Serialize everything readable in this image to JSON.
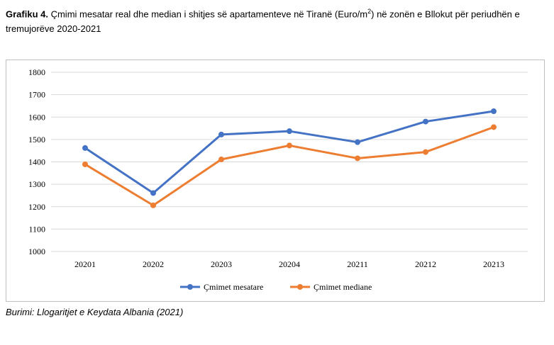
{
  "caption": {
    "label": "Grafiku 4.",
    "text_before_sup": "Çmimi mesatar real dhe median i shitjes së apartamenteve në Tiranë (Euro/m",
    "sup": "2",
    "text_after_sup": ") në zonën e Bllokut për periudhën e tremujorëve 2020-2021"
  },
  "source": "Burimi: Llogaritjet e Keydata Albania (2021)",
  "chart_data": {
    "type": "line",
    "categories": [
      "20201",
      "20202",
      "20203",
      "20204",
      "20211",
      "20212",
      "20213"
    ],
    "series": [
      {
        "name": "Çmimet mesatare",
        "color": "#4472c4",
        "values": [
          1462,
          1261,
          1522,
          1537,
          1488,
          1580,
          1626
        ]
      },
      {
        "name": "Çmimet mediane",
        "color": "#ed7d31",
        "values": [
          1389,
          1206,
          1411,
          1473,
          1416,
          1444,
          1555
        ]
      }
    ],
    "ylim": [
      1000,
      1800
    ],
    "yticks": [
      "1000",
      "1100",
      "1200",
      "1300",
      "1400",
      "1500",
      "1600",
      "1700",
      "1800"
    ],
    "grid": true,
    "legend": "bottom",
    "title": "",
    "xlabel": "",
    "ylabel": ""
  }
}
